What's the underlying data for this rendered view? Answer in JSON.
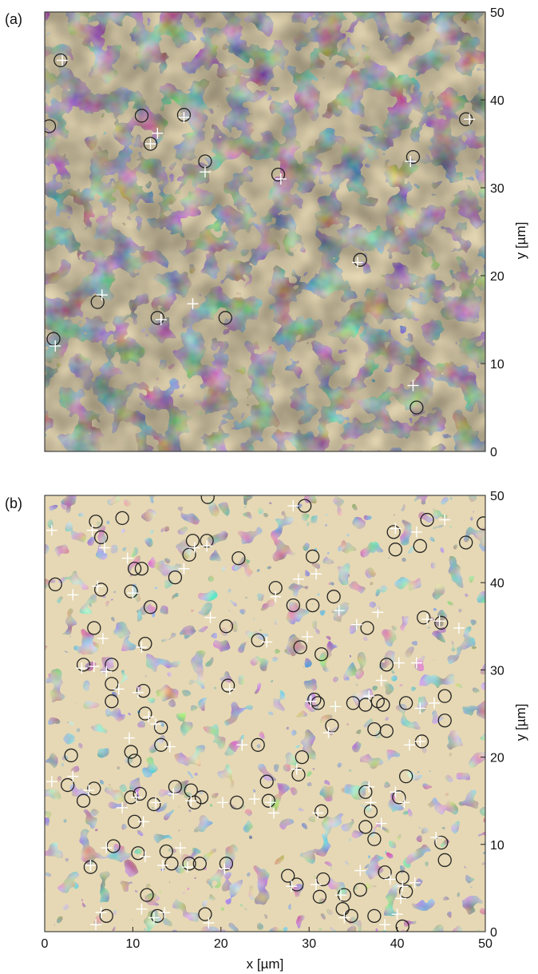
{
  "colors": {
    "light": "#e6d8b4",
    "mid": "#7f9ccf",
    "blue": "#2a6cc0",
    "dark": "#0a1a3a",
    "white": "#f4f2ea",
    "circle": "#222222",
    "cross": "#ffffff"
  },
  "chart_data": [
    {
      "type": "heatmap",
      "panel_label": "(a)",
      "xlim": [
        0,
        50
      ],
      "ylim": [
        0,
        50
      ],
      "y_ticks": [
        "0",
        "10",
        "20",
        "30",
        "40",
        "50"
      ],
      "y_axis_side": "right",
      "ylabel": "y [µm]",
      "xlabel": "",
      "x_ticks": [],
      "markers": {
        "circles": [
          [
            1.8,
            44.5
          ],
          [
            0.5,
            37.0
          ],
          [
            11.0,
            38.2
          ],
          [
            12.0,
            35.0
          ],
          [
            15.8,
            38.3
          ],
          [
            18.2,
            33.0
          ],
          [
            26.5,
            31.5
          ],
          [
            41.8,
            33.5
          ],
          [
            47.8,
            37.8
          ],
          [
            35.8,
            21.8
          ],
          [
            6.0,
            17.0
          ],
          [
            12.8,
            15.2
          ],
          [
            20.5,
            15.2
          ],
          [
            1.0,
            12.8
          ],
          [
            42.2,
            5.0
          ]
        ],
        "crosses": [
          [
            2.0,
            44.5
          ],
          [
            12.8,
            36.2
          ],
          [
            15.8,
            38.0
          ],
          [
            18.2,
            31.8
          ],
          [
            26.8,
            31.0
          ],
          [
            41.5,
            33.0
          ],
          [
            48.2,
            37.8
          ],
          [
            35.5,
            21.5
          ],
          [
            6.5,
            17.8
          ],
          [
            13.2,
            15.0
          ],
          [
            16.8,
            16.8
          ],
          [
            1.2,
            12.0
          ],
          [
            41.8,
            7.5
          ],
          [
            12.0,
            35.0
          ]
        ]
      }
    },
    {
      "type": "heatmap",
      "panel_label": "(b)",
      "xlim": [
        0,
        50
      ],
      "ylim": [
        0,
        50
      ],
      "x_ticks": [
        "0",
        "10",
        "20",
        "30",
        "40",
        "50"
      ],
      "y_ticks": [
        "0",
        "10",
        "20",
        "30",
        "40",
        "50"
      ],
      "y_axis_side": "right",
      "xlabel": "x [µm]",
      "ylabel": "y [µm]",
      "markers": {
        "circles": [
          [
            18.5,
            49.8
          ],
          [
            29.5,
            48.8
          ],
          [
            49.8,
            46.8
          ],
          [
            5.8,
            47.0
          ],
          [
            8.8,
            47.4
          ],
          [
            6.4,
            45.2
          ],
          [
            16.8,
            44.8
          ],
          [
            18.4,
            44.8
          ],
          [
            22.0,
            42.8
          ],
          [
            30.4,
            43.0
          ],
          [
            43.4,
            47.2
          ],
          [
            39.6,
            45.8
          ],
          [
            39.8,
            43.8
          ],
          [
            42.6,
            44.2
          ],
          [
            47.8,
            44.6
          ],
          [
            1.2,
            39.8
          ],
          [
            6.4,
            39.2
          ],
          [
            9.8,
            39.0
          ],
          [
            10.2,
            41.6
          ],
          [
            11.0,
            41.6
          ],
          [
            14.8,
            40.6
          ],
          [
            12.0,
            37.2
          ],
          [
            16.4,
            43.2
          ],
          [
            26.2,
            39.4
          ],
          [
            28.2,
            37.4
          ],
          [
            30.4,
            37.4
          ],
          [
            32.8,
            38.4
          ],
          [
            36.6,
            34.8
          ],
          [
            43.0,
            36.0
          ],
          [
            45.0,
            35.4
          ],
          [
            20.6,
            35.0
          ],
          [
            24.2,
            33.4
          ],
          [
            29.0,
            32.6
          ],
          [
            31.4,
            31.8
          ],
          [
            5.6,
            34.8
          ],
          [
            11.4,
            33.0
          ],
          [
            4.4,
            30.6
          ],
          [
            7.6,
            30.6
          ],
          [
            7.6,
            28.4
          ],
          [
            7.6,
            26.4
          ],
          [
            11.2,
            27.6
          ],
          [
            20.8,
            28.2
          ],
          [
            38.8,
            30.6
          ],
          [
            11.4,
            25.0
          ],
          [
            13.2,
            23.4
          ],
          [
            13.2,
            21.4
          ],
          [
            30.6,
            26.6
          ],
          [
            31.0,
            26.2
          ],
          [
            32.6,
            23.6
          ],
          [
            35.0,
            26.2
          ],
          [
            36.4,
            26.0
          ],
          [
            37.4,
            23.2
          ],
          [
            37.8,
            26.4
          ],
          [
            38.4,
            26.0
          ],
          [
            38.8,
            23.0
          ],
          [
            41.0,
            26.2
          ],
          [
            45.4,
            27.0
          ],
          [
            42.8,
            21.8
          ],
          [
            45.4,
            24.2
          ],
          [
            24.2,
            21.4
          ],
          [
            9.8,
            20.6
          ],
          [
            10.2,
            19.6
          ],
          [
            3.0,
            20.2
          ],
          [
            2.6,
            16.8
          ],
          [
            5.6,
            16.4
          ],
          [
            4.4,
            15.0
          ],
          [
            9.8,
            15.4
          ],
          [
            10.8,
            15.8
          ],
          [
            12.4,
            14.6
          ],
          [
            14.8,
            16.6
          ],
          [
            16.6,
            16.2
          ],
          [
            17.0,
            14.8
          ],
          [
            17.8,
            15.4
          ],
          [
            21.8,
            14.8
          ],
          [
            25.2,
            17.2
          ],
          [
            25.4,
            15.0
          ],
          [
            28.8,
            18.0
          ],
          [
            29.2,
            20.0
          ],
          [
            31.4,
            13.8
          ],
          [
            36.4,
            16.0
          ],
          [
            37.0,
            13.8
          ],
          [
            36.4,
            12.0
          ],
          [
            37.4,
            10.6
          ],
          [
            41.0,
            17.8
          ],
          [
            40.2,
            15.4
          ],
          [
            45.0,
            10.2
          ],
          [
            45.4,
            8.2
          ],
          [
            10.2,
            12.6
          ],
          [
            7.8,
            9.8
          ],
          [
            10.6,
            9.0
          ],
          [
            13.8,
            9.2
          ],
          [
            14.4,
            7.8
          ],
          [
            16.4,
            7.8
          ],
          [
            17.6,
            7.8
          ],
          [
            20.6,
            7.8
          ],
          [
            5.2,
            7.4
          ],
          [
            27.6,
            6.4
          ],
          [
            28.6,
            5.4
          ],
          [
            31.6,
            6.0
          ],
          [
            31.2,
            4.0
          ],
          [
            34.0,
            4.2
          ],
          [
            35.8,
            4.8
          ],
          [
            38.6,
            6.8
          ],
          [
            40.6,
            6.2
          ],
          [
            41.0,
            4.6
          ],
          [
            33.8,
            2.6
          ],
          [
            34.8,
            1.8
          ],
          [
            37.4,
            1.8
          ],
          [
            40.6,
            0.6
          ],
          [
            7.0,
            1.8
          ],
          [
            11.6,
            4.2
          ],
          [
            12.8,
            1.8
          ],
          [
            18.2,
            2.0
          ]
        ],
        "crosses": [
          [
            0.8,
            46.0
          ],
          [
            5.4,
            46.0
          ],
          [
            6.8,
            44.0
          ],
          [
            9.4,
            42.8
          ],
          [
            17.0,
            44.0
          ],
          [
            18.4,
            44.2
          ],
          [
            28.2,
            48.8
          ],
          [
            39.8,
            46.2
          ],
          [
            42.2,
            45.8
          ],
          [
            45.4,
            47.2
          ],
          [
            3.2,
            38.6
          ],
          [
            6.0,
            39.6
          ],
          [
            10.0,
            38.8
          ],
          [
            15.8,
            41.6
          ],
          [
            26.2,
            38.4
          ],
          [
            28.8,
            40.4
          ],
          [
            30.8,
            41.0
          ],
          [
            33.4,
            36.8
          ],
          [
            35.4,
            35.2
          ],
          [
            37.8,
            36.6
          ],
          [
            43.4,
            35.8
          ],
          [
            44.8,
            35.6
          ],
          [
            47.0,
            34.8
          ],
          [
            18.8,
            36.0
          ],
          [
            25.2,
            33.2
          ],
          [
            29.8,
            33.8
          ],
          [
            6.6,
            33.6
          ],
          [
            11.0,
            32.6
          ],
          [
            4.2,
            30.2
          ],
          [
            5.6,
            30.4
          ],
          [
            7.0,
            29.8
          ],
          [
            8.4,
            27.8
          ],
          [
            10.6,
            27.4
          ],
          [
            11.8,
            24.6
          ],
          [
            12.6,
            23.8
          ],
          [
            21.0,
            27.8
          ],
          [
            30.2,
            26.4
          ],
          [
            33.0,
            25.8
          ],
          [
            36.8,
            27.0
          ],
          [
            38.2,
            28.8
          ],
          [
            40.2,
            30.8
          ],
          [
            42.2,
            30.8
          ],
          [
            42.6,
            25.6
          ],
          [
            44.2,
            26.2
          ],
          [
            9.6,
            22.2
          ],
          [
            14.2,
            21.2
          ],
          [
            22.4,
            21.4
          ],
          [
            32.2,
            22.8
          ],
          [
            41.4,
            21.4
          ],
          [
            42.6,
            21.8
          ],
          [
            0.8,
            17.2
          ],
          [
            3.2,
            17.8
          ],
          [
            5.0,
            16.2
          ],
          [
            8.8,
            14.2
          ],
          [
            10.4,
            15.4
          ],
          [
            12.6,
            14.8
          ],
          [
            14.6,
            15.8
          ],
          [
            16.6,
            15.0
          ],
          [
            20.2,
            14.8
          ],
          [
            23.8,
            15.2
          ],
          [
            25.6,
            14.8
          ],
          [
            26.0,
            13.6
          ],
          [
            28.6,
            18.6
          ],
          [
            31.0,
            13.6
          ],
          [
            36.8,
            16.6
          ],
          [
            37.0,
            14.8
          ],
          [
            38.2,
            12.4
          ],
          [
            39.8,
            16.0
          ],
          [
            40.8,
            14.8
          ],
          [
            44.4,
            10.8
          ],
          [
            11.2,
            12.6
          ],
          [
            7.0,
            9.6
          ],
          [
            11.4,
            8.6
          ],
          [
            13.4,
            7.6
          ],
          [
            15.4,
            9.6
          ],
          [
            16.2,
            7.4
          ],
          [
            20.4,
            7.2
          ],
          [
            5.2,
            7.6
          ],
          [
            28.0,
            5.2
          ],
          [
            30.8,
            5.4
          ],
          [
            33.6,
            4.2
          ],
          [
            35.8,
            7.0
          ],
          [
            39.2,
            6.0
          ],
          [
            40.6,
            5.2
          ],
          [
            42.0,
            5.6
          ],
          [
            34.0,
            1.6
          ],
          [
            38.6,
            0.8
          ],
          [
            40.0,
            2.0
          ],
          [
            40.4,
            3.8
          ],
          [
            5.8,
            0.8
          ],
          [
            6.4,
            2.2
          ],
          [
            11.0,
            2.6
          ],
          [
            12.4,
            1.6
          ],
          [
            13.6,
            2.2
          ],
          [
            18.6,
            1.0
          ]
        ]
      }
    }
  ]
}
